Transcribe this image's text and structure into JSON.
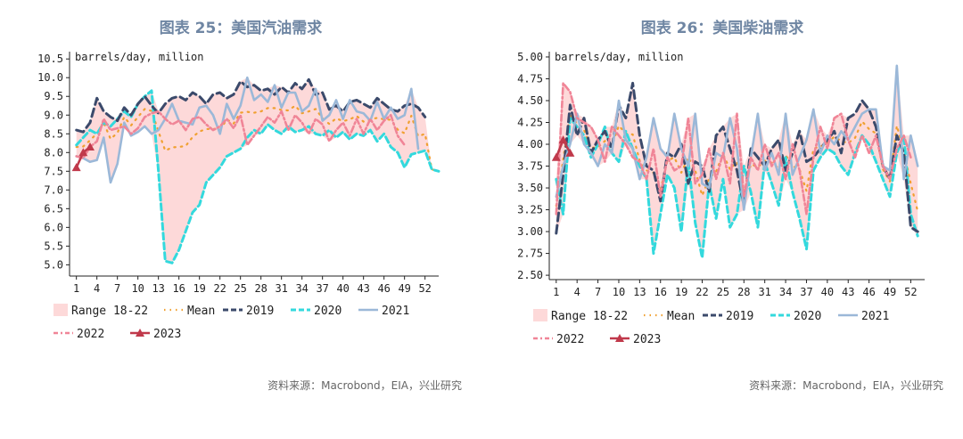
{
  "panels": [
    {
      "title": "图表 25：美国汽油需求",
      "source": "资料来源：Macrobond，EIA，兴业研究"
    },
    {
      "title": "图表 26：美国柴油需求",
      "source": "资料来源：Macrobond，EIA，兴业研究"
    }
  ],
  "colors": {
    "range": "#fdd9d9",
    "mean": "#f0a030",
    "s2019": "#3b4a6b",
    "s2020": "#33d9dd",
    "s2021": "#9bb8d8",
    "s2022": "#f08597",
    "s2023": "#c0394b",
    "axis": "#222222"
  },
  "chart_data": [
    {
      "type": "line",
      "unit_label": "barrels/day, million",
      "x_ticks": [
        1,
        4,
        7,
        10,
        13,
        16,
        19,
        22,
        25,
        28,
        31,
        34,
        37,
        40,
        43,
        46,
        49,
        52
      ],
      "y_ticks": [
        "10.5",
        "10.0",
        "9.5",
        "9.0",
        "8.5",
        "8.0",
        "7.5",
        "7.0",
        "6.5",
        "6.0",
        "5.5",
        "5.0"
      ],
      "xlim": [
        0,
        54
      ],
      "ylim": [
        4.7,
        10.6
      ],
      "legend": [
        {
          "key": "range",
          "label": "Range 18-22"
        },
        {
          "key": "mean",
          "label": "Mean"
        },
        {
          "key": "s2019",
          "label": "2019"
        },
        {
          "key": "s2020",
          "label": "2020"
        },
        {
          "key": "s2021",
          "label": "2021"
        },
        {
          "key": "s2022",
          "label": "2022"
        },
        {
          "key": "s2023",
          "label": "2023"
        }
      ],
      "series": {
        "s2019": [
          8.6,
          8.55,
          8.8,
          9.45,
          9.1,
          8.95,
          8.85,
          9.2,
          9.0,
          9.3,
          9.5,
          9.25,
          9.05,
          9.3,
          9.45,
          9.5,
          9.4,
          9.6,
          9.5,
          9.3,
          9.55,
          9.6,
          9.45,
          9.55,
          9.9,
          9.75,
          9.8,
          9.65,
          9.7,
          9.55,
          9.75,
          9.6,
          9.85,
          9.7,
          9.95,
          9.55,
          9.6,
          9.15,
          9.25,
          9.1,
          9.35,
          9.4,
          9.3,
          9.2,
          9.45,
          9.3,
          9.15,
          9.1,
          9.25,
          9.3,
          9.2,
          8.95
        ],
        "s2020": [
          8.2,
          8.4,
          8.6,
          8.5,
          8.8,
          8.7,
          8.9,
          9.1,
          8.95,
          9.3,
          9.5,
          9.65,
          7.5,
          5.1,
          5.05,
          5.4,
          5.9,
          6.4,
          6.6,
          7.2,
          7.4,
          7.6,
          7.9,
          8.0,
          8.1,
          8.4,
          8.6,
          8.5,
          8.75,
          8.6,
          8.5,
          8.7,
          8.55,
          8.6,
          8.7,
          8.5,
          8.45,
          8.6,
          8.4,
          8.55,
          8.35,
          8.5,
          8.45,
          8.6,
          8.3,
          8.5,
          8.15,
          8.0,
          7.6,
          7.95,
          8.0,
          8.05,
          7.55,
          7.5
        ],
        "s2021": [
          7.9,
          7.85,
          7.75,
          7.8,
          8.4,
          7.2,
          7.7,
          8.8,
          8.45,
          8.55,
          8.7,
          8.5,
          8.6,
          8.9,
          9.3,
          8.85,
          8.8,
          8.75,
          9.2,
          9.25,
          9.0,
          8.5,
          9.3,
          8.9,
          9.25,
          10.0,
          9.4,
          9.55,
          9.35,
          9.8,
          9.2,
          9.6,
          9.6,
          9.1,
          9.25,
          9.7,
          8.85,
          9.0,
          9.4,
          8.9,
          9.4,
          9.1,
          9.05,
          8.85,
          9.35,
          8.9,
          9.2,
          8.9,
          9.0,
          9.7,
          8.1
        ],
        "s2022": [
          7.9,
          7.85,
          8.15,
          8.3,
          8.9,
          8.6,
          8.65,
          8.7,
          8.5,
          8.65,
          8.95,
          9.05,
          9.1,
          8.9,
          8.75,
          8.85,
          8.6,
          8.9,
          8.95,
          8.75,
          8.6,
          8.7,
          8.9,
          8.65,
          9.0,
          8.2,
          8.45,
          8.7,
          8.95,
          8.8,
          9.1,
          8.6,
          9.0,
          8.8,
          8.5,
          8.9,
          8.75,
          8.3,
          8.6,
          8.8,
          8.45,
          8.9,
          8.5,
          8.9,
          8.6,
          8.85,
          9.0,
          8.45,
          8.2
        ],
        "s2023": [
          7.6,
          8.0,
          8.15
        ]
      }
    },
    {
      "type": "line",
      "unit_label": "barrels/day, million",
      "x_ticks": [
        1,
        4,
        7,
        10,
        13,
        16,
        19,
        22,
        25,
        28,
        31,
        34,
        37,
        40,
        43,
        46,
        49,
        52
      ],
      "y_ticks": [
        "5.00",
        "4.75",
        "4.50",
        "4.25",
        "4.00",
        "3.75",
        "3.50",
        "3.25",
        "3.00",
        "2.75",
        "2.50"
      ],
      "xlim": [
        0,
        54
      ],
      "ylim": [
        2.45,
        5.02
      ],
      "legend": [
        {
          "key": "range",
          "label": "Range 18-22"
        },
        {
          "key": "mean",
          "label": "Mean"
        },
        {
          "key": "s2019",
          "label": "2019"
        },
        {
          "key": "s2020",
          "label": "2020"
        },
        {
          "key": "s2021",
          "label": "2021"
        },
        {
          "key": "s2022",
          "label": "2022"
        },
        {
          "key": "s2023",
          "label": "2023"
        }
      ],
      "series": {
        "s2019": [
          2.98,
          3.65,
          4.45,
          4.1,
          4.3,
          3.9,
          4.05,
          4.15,
          3.95,
          4.45,
          4.3,
          4.7,
          4.1,
          3.75,
          3.7,
          3.35,
          3.9,
          3.85,
          4.0,
          3.55,
          3.8,
          3.75,
          3.45,
          4.1,
          4.2,
          3.95,
          3.7,
          3.3,
          3.95,
          3.85,
          3.75,
          3.95,
          4.05,
          3.7,
          3.9,
          4.15,
          3.8,
          3.85,
          3.95,
          4.05,
          4.15,
          3.9,
          4.3,
          4.35,
          4.5,
          4.4,
          4.2,
          3.75,
          3.6,
          4.1,
          3.9,
          3.05,
          3.0
        ],
        "s2020": [
          3.6,
          3.2,
          4.3,
          4.2,
          4.1,
          3.85,
          4.0,
          4.2,
          3.9,
          3.8,
          4.15,
          3.95,
          3.75,
          3.6,
          2.75,
          3.2,
          3.65,
          3.5,
          3.0,
          3.8,
          3.1,
          2.7,
          3.55,
          3.15,
          3.6,
          3.05,
          3.2,
          3.75,
          3.45,
          3.05,
          3.8,
          3.55,
          3.3,
          3.85,
          3.45,
          3.15,
          2.8,
          3.7,
          3.85,
          3.95,
          3.9,
          3.75,
          3.65,
          3.9,
          4.1,
          4.0,
          3.8,
          3.6,
          3.4,
          3.9,
          4.1,
          3.2,
          2.95
        ],
        "s2021": [
          3.4,
          3.75,
          4.0,
          4.35,
          4.0,
          3.9,
          3.75,
          4.0,
          3.9,
          4.5,
          4.05,
          3.95,
          3.6,
          3.85,
          4.3,
          3.95,
          3.85,
          4.35,
          3.95,
          3.75,
          4.35,
          3.55,
          3.5,
          3.9,
          3.85,
          4.3,
          3.95,
          3.25,
          3.85,
          4.35,
          3.7,
          3.9,
          3.65,
          4.35,
          3.65,
          3.85,
          4.05,
          4.4,
          3.9,
          4.1,
          4.0,
          4.15,
          4.05,
          4.2,
          4.35,
          4.4,
          4.4,
          3.75,
          3.7,
          4.9,
          3.6,
          4.1,
          3.75
        ],
        "s2022": [
          3.2,
          4.7,
          4.6,
          4.3,
          4.25,
          4.2,
          4.05,
          3.8,
          4.2,
          4.1,
          4.0,
          3.85,
          3.8,
          3.6,
          3.95,
          3.4,
          3.85,
          3.7,
          3.75,
          4.3,
          3.55,
          3.65,
          3.95,
          3.6,
          3.9,
          3.55,
          4.35,
          3.4,
          3.85,
          3.7,
          4.0,
          3.75,
          3.9,
          3.6,
          4.0,
          3.7,
          3.2,
          3.85,
          4.2,
          3.95,
          4.3,
          4.35,
          4.05,
          3.85,
          4.1,
          3.9,
          4.1,
          3.75,
          3.6,
          3.95,
          4.1,
          3.85
        ],
        "s2023": [
          3.85,
          4.05,
          3.9
        ]
      }
    }
  ]
}
